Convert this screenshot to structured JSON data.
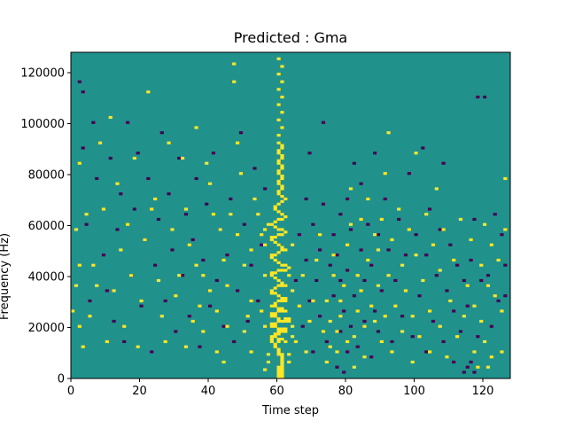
{
  "chart_data": {
    "type": "heatmap",
    "title": "Predicted : Gma",
    "xlabel": "Time step",
    "ylabel": "Frequency (Hz)",
    "xlim": [
      0,
      128
    ],
    "ylim": [
      0,
      128000
    ],
    "xticks": [
      0,
      20,
      40,
      60,
      80,
      100,
      120
    ],
    "yticks": [
      0,
      20000,
      40000,
      60000,
      80000,
      100000,
      120000
    ],
    "xtick_labels": [
      "0",
      "20",
      "40",
      "60",
      "80",
      "100",
      "120"
    ],
    "ytick_labels": [
      "0",
      "20000",
      "40000",
      "60000",
      "80000",
      "100000",
      "120000"
    ],
    "grid": false,
    "legend": "none",
    "n_cols": 128,
    "n_rows": 128,
    "colors": {
      "background": "#21918c",
      "high": "#fde725",
      "low": "#440154"
    },
    "notes": "Binary-like spectrogram of sparse cells on a teal background; dense high-value band concentrated around time steps 57-64.",
    "high_cells": [
      [
        60,
        0
      ],
      [
        60,
        1
      ],
      [
        60,
        2
      ],
      [
        60,
        3
      ],
      [
        60,
        4
      ],
      [
        61,
        0
      ],
      [
        61,
        1
      ],
      [
        61,
        2
      ],
      [
        61,
        3
      ],
      [
        61,
        4
      ],
      [
        61,
        5
      ],
      [
        61,
        6
      ],
      [
        61,
        7
      ],
      [
        61,
        8
      ],
      [
        61,
        9
      ],
      [
        60,
        9
      ],
      [
        60,
        10
      ],
      [
        60,
        11
      ],
      [
        59,
        12
      ],
      [
        59,
        13
      ],
      [
        60,
        14
      ],
      [
        60,
        15
      ],
      [
        61,
        15
      ],
      [
        62,
        14
      ],
      [
        58,
        14
      ],
      [
        58,
        15
      ],
      [
        58,
        16
      ],
      [
        59,
        16
      ],
      [
        59,
        17
      ],
      [
        60,
        17
      ],
      [
        60,
        18
      ],
      [
        61,
        18
      ],
      [
        62,
        18
      ],
      [
        62,
        19
      ],
      [
        61,
        19
      ],
      [
        60,
        19
      ],
      [
        59,
        20
      ],
      [
        58,
        20
      ],
      [
        58,
        21
      ],
      [
        59,
        21
      ],
      [
        60,
        22
      ],
      [
        61,
        22
      ],
      [
        62,
        22
      ],
      [
        63,
        22
      ],
      [
        63,
        23
      ],
      [
        62,
        23
      ],
      [
        60,
        23
      ],
      [
        59,
        24
      ],
      [
        58,
        24
      ],
      [
        58,
        25
      ],
      [
        59,
        25
      ],
      [
        60,
        26
      ],
      [
        61,
        26
      ],
      [
        62,
        26
      ],
      [
        61,
        27
      ],
      [
        60,
        27
      ],
      [
        59,
        28
      ],
      [
        58,
        28
      ],
      [
        59,
        29
      ],
      [
        60,
        30
      ],
      [
        61,
        30
      ],
      [
        62,
        30
      ],
      [
        62,
        31
      ],
      [
        61,
        31
      ],
      [
        60,
        32
      ],
      [
        59,
        33
      ],
      [
        58,
        33
      ],
      [
        58,
        34
      ],
      [
        59,
        35
      ],
      [
        60,
        36
      ],
      [
        61,
        36
      ],
      [
        62,
        36
      ],
      [
        61,
        37
      ],
      [
        60,
        38
      ],
      [
        59,
        39
      ],
      [
        58,
        40
      ],
      [
        58,
        41
      ],
      [
        59,
        41
      ],
      [
        60,
        42
      ],
      [
        61,
        42
      ],
      [
        62,
        42
      ],
      [
        63,
        43
      ],
      [
        62,
        44
      ],
      [
        61,
        44
      ],
      [
        60,
        45
      ],
      [
        59,
        46
      ],
      [
        58,
        47
      ],
      [
        58,
        48
      ],
      [
        59,
        48
      ],
      [
        60,
        49
      ],
      [
        61,
        50
      ],
      [
        62,
        50
      ],
      [
        61,
        51
      ],
      [
        60,
        52
      ],
      [
        59,
        53
      ],
      [
        58,
        54
      ],
      [
        58,
        55
      ],
      [
        59,
        55
      ],
      [
        60,
        56
      ],
      [
        61,
        56
      ],
      [
        62,
        57
      ],
      [
        61,
        58
      ],
      [
        60,
        58
      ],
      [
        59,
        59
      ],
      [
        58,
        60
      ],
      [
        59,
        61
      ],
      [
        60,
        62
      ],
      [
        61,
        62
      ],
      [
        62,
        63
      ],
      [
        61,
        64
      ],
      [
        60,
        65
      ],
      [
        59,
        66
      ],
      [
        59,
        67
      ],
      [
        60,
        68
      ],
      [
        61,
        69
      ],
      [
        62,
        70
      ],
      [
        61,
        71
      ],
      [
        60,
        72
      ],
      [
        60,
        73
      ],
      [
        61,
        74
      ],
      [
        61,
        75
      ],
      [
        60,
        76
      ],
      [
        60,
        77
      ],
      [
        61,
        78
      ],
      [
        61,
        79
      ],
      [
        60,
        80
      ],
      [
        60,
        81
      ],
      [
        61,
        82
      ],
      [
        61,
        83
      ],
      [
        60,
        84
      ],
      [
        60,
        85
      ],
      [
        61,
        86
      ],
      [
        61,
        87
      ],
      [
        60,
        88
      ],
      [
        60,
        89
      ],
      [
        61,
        90
      ],
      [
        61,
        91
      ],
      [
        60,
        92
      ],
      [
        60,
        95
      ],
      [
        61,
        98
      ],
      [
        60,
        101
      ],
      [
        61,
        104
      ],
      [
        60,
        107
      ],
      [
        61,
        110
      ],
      [
        60,
        113
      ],
      [
        61,
        116
      ],
      [
        60,
        119
      ],
      [
        61,
        122
      ],
      [
        60,
        125
      ],
      [
        63,
        6
      ],
      [
        63,
        9
      ],
      [
        64,
        16
      ],
      [
        64,
        20
      ],
      [
        64,
        34
      ],
      [
        63,
        40
      ],
      [
        64,
        52
      ],
      [
        57,
        6
      ],
      [
        57,
        9
      ],
      [
        56,
        3
      ],
      [
        56,
        20
      ],
      [
        55,
        26
      ],
      [
        56,
        40
      ],
      [
        56,
        52
      ],
      [
        56,
        58
      ],
      [
        57,
        60
      ],
      [
        54,
        64
      ],
      [
        53,
        70
      ],
      [
        55,
        56
      ],
      [
        52,
        10
      ],
      [
        52,
        30
      ],
      [
        52,
        50
      ],
      [
        51,
        24
      ],
      [
        50,
        18
      ],
      [
        50,
        44
      ],
      [
        48,
        56
      ],
      [
        49,
        80
      ],
      [
        48,
        92
      ],
      [
        47,
        116
      ],
      [
        47,
        123
      ],
      [
        46,
        64
      ],
      [
        45,
        36
      ],
      [
        45,
        20
      ],
      [
        44,
        6
      ],
      [
        44,
        46
      ],
      [
        43,
        58
      ],
      [
        42,
        10
      ],
      [
        42,
        26
      ],
      [
        41,
        64
      ],
      [
        40,
        34
      ],
      [
        40,
        76
      ],
      [
        39,
        84
      ],
      [
        38,
        40
      ],
      [
        38,
        18
      ],
      [
        37,
        28
      ],
      [
        36,
        44
      ],
      [
        36,
        98
      ],
      [
        35,
        22
      ],
      [
        34,
        52
      ],
      [
        33,
        66
      ],
      [
        33,
        12
      ],
      [
        32,
        86
      ],
      [
        31,
        40
      ],
      [
        30,
        32
      ],
      [
        29,
        58
      ],
      [
        28,
        92
      ],
      [
        27,
        14
      ],
      [
        26,
        24
      ],
      [
        25,
        38
      ],
      [
        24,
        70
      ],
      [
        23,
        66
      ],
      [
        22,
        112
      ],
      [
        21,
        54
      ],
      [
        20,
        30
      ],
      [
        19,
        12
      ],
      [
        18,
        86
      ],
      [
        17,
        40
      ],
      [
        16,
        60
      ],
      [
        15,
        20
      ],
      [
        14,
        50
      ],
      [
        13,
        76
      ],
      [
        12,
        34
      ],
      [
        11,
        102
      ],
      [
        10,
        14
      ],
      [
        9,
        66
      ],
      [
        8,
        92
      ],
      [
        7,
        36
      ],
      [
        6,
        44
      ],
      [
        5,
        24
      ],
      [
        4,
        64
      ],
      [
        3,
        12
      ],
      [
        2,
        20
      ],
      [
        2,
        44
      ],
      [
        2,
        84
      ],
      [
        1,
        36
      ],
      [
        1,
        58
      ],
      [
        0,
        26
      ],
      [
        65,
        14
      ],
      [
        66,
        28
      ],
      [
        67,
        40
      ],
      [
        68,
        10
      ],
      [
        69,
        22
      ],
      [
        70,
        30
      ],
      [
        71,
        46
      ],
      [
        72,
        56
      ],
      [
        73,
        18
      ],
      [
        74,
        30
      ],
      [
        74,
        6
      ],
      [
        75,
        12
      ],
      [
        75,
        22
      ],
      [
        76,
        40
      ],
      [
        76,
        48
      ],
      [
        77,
        10
      ],
      [
        77,
        18
      ],
      [
        78,
        24
      ],
      [
        78,
        30
      ],
      [
        79,
        36
      ],
      [
        80,
        14
      ],
      [
        80,
        52
      ],
      [
        81,
        60
      ],
      [
        81,
        74
      ],
      [
        82,
        4
      ],
      [
        82,
        16
      ],
      [
        83,
        26
      ],
      [
        83,
        40
      ],
      [
        84,
        34
      ],
      [
        84,
        62
      ],
      [
        85,
        8
      ],
      [
        85,
        20
      ],
      [
        86,
        46
      ],
      [
        86,
        70
      ],
      [
        87,
        28
      ],
      [
        88,
        22
      ],
      [
        88,
        56
      ],
      [
        89,
        36
      ],
      [
        89,
        50
      ],
      [
        90,
        14
      ],
      [
        90,
        62
      ],
      [
        91,
        24
      ],
      [
        91,
        80
      ],
      [
        92,
        40
      ],
      [
        92,
        96
      ],
      [
        93,
        10
      ],
      [
        93,
        54
      ],
      [
        94,
        28
      ],
      [
        95,
        66
      ],
      [
        96,
        18
      ],
      [
        96,
        44
      ],
      [
        97,
        34
      ],
      [
        98,
        58
      ],
      [
        99,
        6
      ],
      [
        99,
        24
      ],
      [
        100,
        48
      ],
      [
        100,
        88
      ],
      [
        101,
        16
      ],
      [
        102,
        38
      ],
      [
        103,
        64
      ],
      [
        104,
        10
      ],
      [
        104,
        26
      ],
      [
        105,
        52
      ],
      [
        106,
        74
      ],
      [
        107,
        20
      ],
      [
        107,
        42
      ],
      [
        108,
        58
      ],
      [
        109,
        8
      ],
      [
        110,
        30
      ],
      [
        111,
        46
      ],
      [
        112,
        16
      ],
      [
        113,
        62
      ],
      [
        114,
        24
      ],
      [
        115,
        36
      ],
      [
        116,
        54
      ],
      [
        117,
        10
      ],
      [
        117,
        28
      ],
      [
        118,
        4
      ],
      [
        119,
        22
      ],
      [
        119,
        44
      ],
      [
        120,
        14
      ],
      [
        120,
        60
      ],
      [
        121,
        4
      ],
      [
        121,
        36
      ],
      [
        122,
        8
      ],
      [
        122,
        52
      ],
      [
        123,
        32
      ],
      [
        124,
        46
      ],
      [
        125,
        10
      ],
      [
        125,
        26
      ],
      [
        126,
        58
      ],
      [
        126,
        78
      ]
    ],
    "low_cells": [
      [
        2,
        116
      ],
      [
        3,
        90
      ],
      [
        3,
        112
      ],
      [
        4,
        60
      ],
      [
        5,
        30
      ],
      [
        6,
        100
      ],
      [
        7,
        78
      ],
      [
        9,
        48
      ],
      [
        10,
        34
      ],
      [
        11,
        86
      ],
      [
        12,
        22
      ],
      [
        13,
        58
      ],
      [
        14,
        72
      ],
      [
        15,
        14
      ],
      [
        16,
        100
      ],
      [
        17,
        40
      ],
      [
        18,
        66
      ],
      [
        19,
        88
      ],
      [
        20,
        28
      ],
      [
        21,
        54
      ],
      [
        22,
        78
      ],
      [
        23,
        10
      ],
      [
        24,
        44
      ],
      [
        25,
        62
      ],
      [
        26,
        96
      ],
      [
        27,
        30
      ],
      [
        28,
        72
      ],
      [
        29,
        50
      ],
      [
        30,
        18
      ],
      [
        31,
        86
      ],
      [
        32,
        40
      ],
      [
        33,
        64
      ],
      [
        34,
        24
      ],
      [
        35,
        54
      ],
      [
        36,
        78
      ],
      [
        37,
        12
      ],
      [
        38,
        46
      ],
      [
        39,
        68
      ],
      [
        40,
        28
      ],
      [
        41,
        88
      ],
      [
        42,
        38
      ],
      [
        43,
        58
      ],
      [
        44,
        20
      ],
      [
        45,
        48
      ],
      [
        46,
        70
      ],
      [
        47,
        14
      ],
      [
        48,
        34
      ],
      [
        49,
        96
      ],
      [
        50,
        60
      ],
      [
        51,
        22
      ],
      [
        52,
        44
      ],
      [
        53,
        82
      ],
      [
        54,
        30
      ],
      [
        55,
        52
      ],
      [
        56,
        74
      ],
      [
        65,
        38
      ],
      [
        66,
        56
      ],
      [
        67,
        20
      ],
      [
        68,
        46
      ],
      [
        68,
        70
      ],
      [
        69,
        30
      ],
      [
        69,
        88
      ],
      [
        70,
        10
      ],
      [
        70,
        60
      ],
      [
        71,
        38
      ],
      [
        72,
        24
      ],
      [
        72,
        50
      ],
      [
        73,
        68
      ],
      [
        73,
        100
      ],
      [
        74,
        14
      ],
      [
        75,
        44
      ],
      [
        76,
        32
      ],
      [
        76,
        56
      ],
      [
        77,
        4
      ],
      [
        77,
        48
      ],
      [
        78,
        18
      ],
      [
        78,
        38
      ],
      [
        78,
        64
      ],
      [
        79,
        2
      ],
      [
        79,
        26
      ],
      [
        80,
        10
      ],
      [
        80,
        42
      ],
      [
        80,
        70
      ],
      [
        81,
        20
      ],
      [
        81,
        58
      ],
      [
        82,
        32
      ],
      [
        82,
        84
      ],
      [
        83,
        12
      ],
      [
        84,
        50
      ],
      [
        84,
        76
      ],
      [
        85,
        22
      ],
      [
        85,
        38
      ],
      [
        86,
        60
      ],
      [
        87,
        8
      ],
      [
        87,
        44
      ],
      [
        88,
        26
      ],
      [
        88,
        88
      ],
      [
        89,
        18
      ],
      [
        89,
        56
      ],
      [
        90,
        34
      ],
      [
        91,
        70
      ],
      [
        92,
        50
      ],
      [
        93,
        14
      ],
      [
        94,
        38
      ],
      [
        95,
        62
      ],
      [
        96,
        24
      ],
      [
        97,
        48
      ],
      [
        98,
        80
      ],
      [
        99,
        16
      ],
      [
        100,
        56
      ],
      [
        101,
        32
      ],
      [
        102,
        90
      ],
      [
        103,
        10
      ],
      [
        103,
        48
      ],
      [
        104,
        66
      ],
      [
        105,
        22
      ],
      [
        106,
        40
      ],
      [
        107,
        58
      ],
      [
        108,
        14
      ],
      [
        108,
        84
      ],
      [
        109,
        34
      ],
      [
        110,
        52
      ],
      [
        111,
        6
      ],
      [
        111,
        26
      ],
      [
        112,
        44
      ],
      [
        113,
        18
      ],
      [
        114,
        2
      ],
      [
        114,
        38
      ],
      [
        115,
        4
      ],
      [
        115,
        28
      ],
      [
        116,
        6
      ],
      [
        116,
        46
      ],
      [
        117,
        2
      ],
      [
        117,
        62
      ],
      [
        118,
        16
      ],
      [
        118,
        110
      ],
      [
        119,
        38
      ],
      [
        120,
        110
      ],
      [
        121,
        40
      ],
      [
        122,
        20
      ],
      [
        123,
        64
      ],
      [
        124,
        30
      ],
      [
        125,
        56
      ],
      [
        126,
        32
      ],
      [
        126,
        44
      ]
    ]
  }
}
